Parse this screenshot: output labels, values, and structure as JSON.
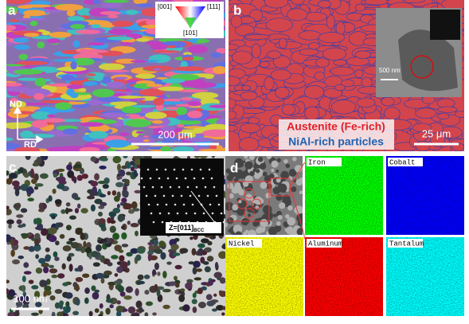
{
  "panels": {
    "a": {
      "label": "a",
      "legend": [
        "[001]",
        "[111]",
        "[101]"
      ],
      "axes": [
        "ND",
        "RD"
      ],
      "scale": "200 μm"
    },
    "b": {
      "label": "b",
      "phases": [
        "Austenite (Fe-rich)",
        "NiAl-rich particles"
      ],
      "scale": "25 μm",
      "inset_scale": "500 nm"
    },
    "c": {
      "label": "c",
      "scale": "100 nm",
      "zone_axis": {
        "text": "Z=[011]",
        "subscript": "BCC"
      }
    },
    "d": {
      "label": "d",
      "maps": [
        "Iron",
        "Cobalt",
        "Nickel",
        "Aluminum",
        "Tantalum"
      ]
    }
  }
}
